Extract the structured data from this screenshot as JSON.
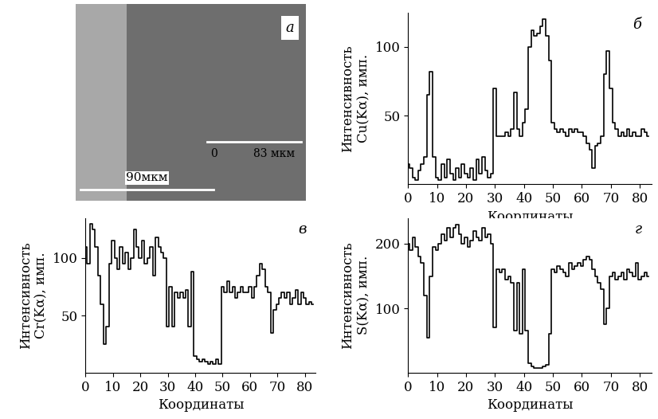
{
  "image_panel": {
    "label": "а",
    "scale_bar": "90мкм",
    "profile_start": "0",
    "profile_end": "83 мкм"
  },
  "chart_data": [
    {
      "type": "line",
      "label": "б",
      "color": "#000000",
      "line_style": "steps",
      "x_label": "Координаты",
      "y_label": "Интенсивность\nCu(Kα), имп.",
      "x": [
        0,
        1,
        2,
        3,
        4,
        5,
        6,
        7,
        8,
        9,
        10,
        11,
        12,
        13,
        14,
        15,
        16,
        17,
        18,
        19,
        20,
        21,
        22,
        23,
        24,
        25,
        26,
        27,
        28,
        29,
        30,
        31,
        32,
        33,
        34,
        35,
        36,
        37,
        38,
        39,
        40,
        41,
        42,
        43,
        44,
        45,
        46,
        47,
        48,
        49,
        50,
        51,
        52,
        53,
        54,
        55,
        56,
        57,
        58,
        59,
        60,
        61,
        62,
        63,
        64,
        65,
        66,
        67,
        68,
        69,
        70,
        71,
        72,
        73,
        74,
        75,
        76,
        77,
        78,
        79,
        80,
        81,
        82,
        83
      ],
      "values": [
        15,
        12,
        5,
        3,
        10,
        15,
        20,
        65,
        82,
        20,
        5,
        3,
        15,
        5,
        18,
        8,
        3,
        12,
        5,
        15,
        8,
        5,
        12,
        3,
        18,
        8,
        20,
        10,
        5,
        8,
        70,
        35,
        35,
        35,
        38,
        35,
        40,
        67,
        40,
        35,
        45,
        55,
        100,
        112,
        108,
        110,
        115,
        120,
        108,
        90,
        45,
        40,
        38,
        40,
        38,
        35,
        40,
        38,
        40,
        38,
        38,
        35,
        30,
        25,
        12,
        28,
        30,
        35,
        80,
        97,
        70,
        45,
        40,
        35,
        38,
        35,
        40,
        35,
        38,
        35,
        35,
        40,
        38,
        35
      ],
      "xlim": [
        0,
        84
      ],
      "xticks": [
        0,
        10,
        20,
        30,
        40,
        50,
        60,
        70,
        80
      ],
      "ylim": [
        0,
        125
      ],
      "yticks": [
        50,
        100
      ]
    },
    {
      "type": "line",
      "label": "в",
      "color": "#000000",
      "line_style": "steps",
      "x_label": "Координаты",
      "y_label": "Интенсивность\nCr(Kα), имп.",
      "x": [
        0,
        1,
        2,
        3,
        4,
        5,
        6,
        7,
        8,
        9,
        10,
        11,
        12,
        13,
        14,
        15,
        16,
        17,
        18,
        19,
        20,
        21,
        22,
        23,
        24,
        25,
        26,
        27,
        28,
        29,
        30,
        31,
        32,
        33,
        34,
        35,
        36,
        37,
        38,
        39,
        40,
        41,
        42,
        43,
        44,
        45,
        46,
        47,
        48,
        49,
        50,
        51,
        52,
        53,
        54,
        55,
        56,
        57,
        58,
        59,
        60,
        61,
        62,
        63,
        64,
        65,
        66,
        67,
        68,
        69,
        70,
        71,
        72,
        73,
        74,
        75,
        76,
        77,
        78,
        79,
        80,
        81,
        82,
        83
      ],
      "values": [
        110,
        95,
        130,
        125,
        110,
        85,
        60,
        25,
        40,
        95,
        115,
        100,
        90,
        110,
        95,
        105,
        90,
        100,
        125,
        110,
        100,
        115,
        95,
        100,
        110,
        85,
        118,
        110,
        105,
        100,
        40,
        75,
        40,
        70,
        65,
        70,
        65,
        72,
        40,
        88,
        15,
        12,
        10,
        12,
        10,
        8,
        10,
        8,
        12,
        8,
        75,
        70,
        80,
        70,
        75,
        65,
        70,
        75,
        70,
        70,
        75,
        65,
        75,
        85,
        95,
        90,
        75,
        70,
        35,
        55,
        60,
        65,
        70,
        65,
        70,
        60,
        65,
        72,
        60,
        70,
        65,
        60,
        62,
        60
      ],
      "xlim": [
        0,
        84
      ],
      "xticks": [
        0,
        10,
        20,
        30,
        40,
        50,
        60,
        70,
        80
      ],
      "ylim": [
        0,
        135
      ],
      "yticks": [
        50,
        100
      ]
    },
    {
      "type": "line",
      "label": "г",
      "color": "#000000",
      "line_style": "steps",
      "x_label": "Координаты",
      "y_label": "Интенсивность\nS(Kα), имп.",
      "x": [
        0,
        1,
        2,
        3,
        4,
        5,
        6,
        7,
        8,
        9,
        10,
        11,
        12,
        13,
        14,
        15,
        16,
        17,
        18,
        19,
        20,
        21,
        22,
        23,
        24,
        25,
        26,
        27,
        28,
        29,
        30,
        31,
        32,
        33,
        34,
        35,
        36,
        37,
        38,
        39,
        40,
        41,
        42,
        43,
        44,
        45,
        46,
        47,
        48,
        49,
        50,
        51,
        52,
        53,
        54,
        55,
        56,
        57,
        58,
        59,
        60,
        61,
        62,
        63,
        64,
        65,
        66,
        67,
        68,
        69,
        70,
        71,
        72,
        73,
        74,
        75,
        76,
        77,
        78,
        79,
        80,
        81,
        82,
        83
      ],
      "values": [
        200,
        190,
        210,
        195,
        180,
        170,
        120,
        55,
        150,
        195,
        190,
        200,
        215,
        205,
        225,
        210,
        225,
        230,
        215,
        200,
        210,
        195,
        205,
        220,
        210,
        205,
        225,
        210,
        215,
        200,
        70,
        160,
        155,
        160,
        145,
        150,
        140,
        65,
        140,
        60,
        160,
        65,
        15,
        10,
        8,
        8,
        8,
        10,
        12,
        60,
        160,
        155,
        165,
        160,
        155,
        150,
        170,
        160,
        165,
        170,
        165,
        175,
        180,
        175,
        160,
        150,
        140,
        130,
        75,
        100,
        150,
        155,
        145,
        150,
        155,
        145,
        160,
        155,
        150,
        170,
        145,
        150,
        155,
        150
      ],
      "xlim": [
        0,
        84
      ],
      "xticks": [
        0,
        10,
        20,
        30,
        40,
        50,
        60,
        70,
        80
      ],
      "ylim": [
        0,
        240
      ],
      "yticks": [
        100,
        200
      ]
    }
  ]
}
